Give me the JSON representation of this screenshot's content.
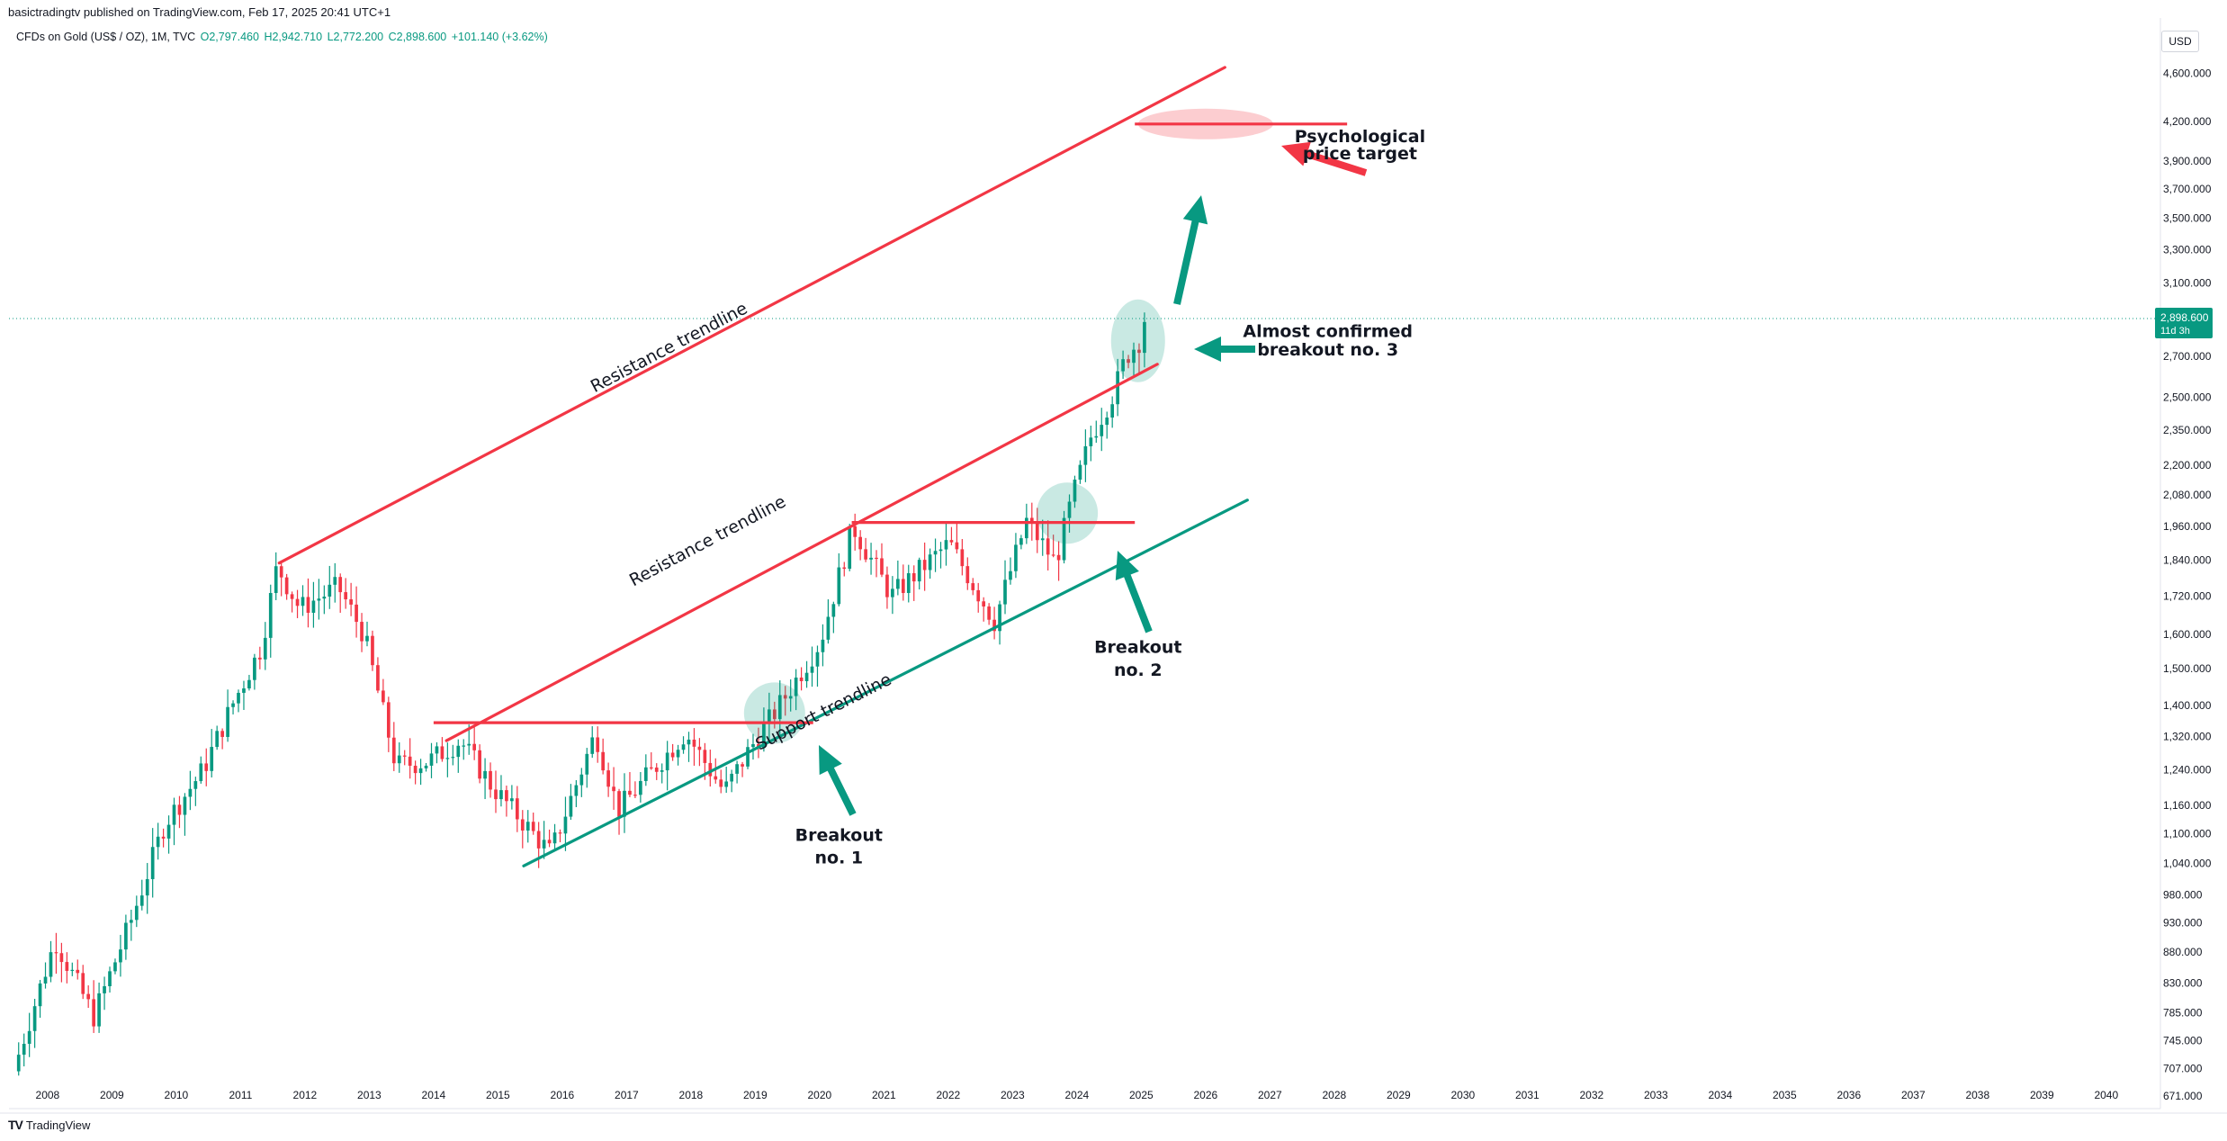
{
  "header": {
    "published_line": "basictradingtv published on TradingView.com, Feb 17, 2025 20:41 UTC+1",
    "symbol": "CFDs on Gold (US$ / OZ), 1M, TVC",
    "open": "O2,797.460",
    "high": "H2,942.710",
    "low": "L2,772.200",
    "close": "C2,898.600",
    "change": "+101.140 (+3.62%)"
  },
  "currency": "USD",
  "last_price_label": {
    "price": "2,898.600",
    "countdown": "11d 3h"
  },
  "footer": {
    "brand": "TradingView"
  },
  "colors": {
    "up": "#089981",
    "down": "#f23645",
    "resistance": "#f23645",
    "support": "#089981",
    "axis_text": "#131722"
  },
  "chart_data": {
    "type": "candlestick",
    "scale": "log",
    "interval": "1M",
    "x_ticks": [
      "2008",
      "2009",
      "2010",
      "2011",
      "2012",
      "2013",
      "2014",
      "2015",
      "2016",
      "2017",
      "2018",
      "2019",
      "2020",
      "2021",
      "2022",
      "2023",
      "2024",
      "2025",
      "2026",
      "2027",
      "2028",
      "2029",
      "2030",
      "2031",
      "2032",
      "2033",
      "2034",
      "2035",
      "2036",
      "2037",
      "2038",
      "2039",
      "2040"
    ],
    "y_ticks": [
      "671.000",
      "707.000",
      "745.000",
      "785.000",
      "830.000",
      "880.000",
      "930.000",
      "980.000",
      "1,040.000",
      "1,100.000",
      "1,160.000",
      "1,240.000",
      "1,320.000",
      "1,400.000",
      "1,500.000",
      "1,600.000",
      "1,720.000",
      "1,840.000",
      "1,960.000",
      "2,080.000",
      "2,200.000",
      "2,350.000",
      "2,500.000",
      "2,700.000",
      "2,900.000",
      "3,100.000",
      "3,300.000",
      "3,500.000",
      "3,700.000",
      "3,900.000",
      "4,200.000",
      "4,600.000"
    ],
    "ylim": [
      660,
      4850
    ],
    "xlim": [
      2007.4,
      2040.8
    ],
    "last_price": 2898.6,
    "trend_anchors": [
      {
        "year": 2007.5,
        "price": 690
      },
      {
        "year": 2008.2,
        "price": 900
      },
      {
        "year": 2008.8,
        "price": 780
      },
      {
        "year": 2009.4,
        "price": 940
      },
      {
        "year": 2009.9,
        "price": 1120
      },
      {
        "year": 2010.5,
        "price": 1240
      },
      {
        "year": 2010.95,
        "price": 1400
      },
      {
        "year": 2011.4,
        "price": 1560
      },
      {
        "year": 2011.65,
        "price": 1820
      },
      {
        "year": 2012.0,
        "price": 1680
      },
      {
        "year": 2012.6,
        "price": 1750
      },
      {
        "year": 2013.0,
        "price": 1600
      },
      {
        "year": 2013.5,
        "price": 1250
      },
      {
        "year": 2014.0,
        "price": 1260
      },
      {
        "year": 2014.5,
        "price": 1310
      },
      {
        "year": 2015.0,
        "price": 1200
      },
      {
        "year": 2015.9,
        "price": 1060
      },
      {
        "year": 2016.6,
        "price": 1330
      },
      {
        "year": 2016.95,
        "price": 1150
      },
      {
        "year": 2018.0,
        "price": 1330
      },
      {
        "year": 2018.6,
        "price": 1190
      },
      {
        "year": 2019.0,
        "price": 1290
      },
      {
        "year": 2019.5,
        "price": 1410
      },
      {
        "year": 2020.1,
        "price": 1580
      },
      {
        "year": 2020.6,
        "price": 1960
      },
      {
        "year": 2021.2,
        "price": 1720
      },
      {
        "year": 2022.1,
        "price": 1900
      },
      {
        "year": 2022.8,
        "price": 1640
      },
      {
        "year": 2023.3,
        "price": 1980
      },
      {
        "year": 2023.75,
        "price": 1830
      },
      {
        "year": 2024.0,
        "price": 2060
      },
      {
        "year": 2024.3,
        "price": 2320
      },
      {
        "year": 2024.65,
        "price": 2520
      },
      {
        "year": 2024.85,
        "price": 2700
      },
      {
        "year": 2025.1,
        "price": 2800
      },
      {
        "year": 2025.13,
        "price": 2898.6
      }
    ],
    "drawings": {
      "resistance_upper": {
        "from": {
          "year": 2011.6,
          "price": 1830
        },
        "to": {
          "year": 2026.3,
          "price": 4650
        }
      },
      "resistance_lower": {
        "from": {
          "year": 2014.2,
          "price": 1310
        },
        "to": {
          "year": 2025.25,
          "price": 2660
        }
      },
      "support": {
        "from": {
          "year": 2015.4,
          "price": 1035
        },
        "to": {
          "year": 2026.65,
          "price": 2060
        }
      },
      "horizontal_1": {
        "from": 2014.0,
        "to": 2019.9,
        "price": 1355
      },
      "horizontal_2": {
        "from": 2020.5,
        "to": 2024.9,
        "price": 1975
      },
      "target_line": {
        "from": 2024.9,
        "to": 2028.2,
        "price": 4180
      },
      "target_ellipse": {
        "year": 2026.0,
        "price": 4180,
        "rx_years": 1.05
      },
      "breakout_circles": [
        {
          "year": 2019.3,
          "price": 1380
        },
        {
          "year": 2023.85,
          "price": 2010
        },
        {
          "year": 2024.95,
          "price": 2780
        }
      ]
    },
    "annotations": [
      {
        "text": "Resistance trendline",
        "year": 2017.7,
        "price": 2720,
        "kind": "upper-label"
      },
      {
        "text": "Resistance trendline",
        "year": 2018.3,
        "price": 1890,
        "kind": "lower-label"
      },
      {
        "text": "Support trendline",
        "year": 2020.1,
        "price": 1370,
        "kind": "support-label"
      },
      {
        "text": "Psychological",
        "year": 2028.4,
        "price": 4040,
        "kind": "target"
      },
      {
        "text": "price target",
        "year": 2028.4,
        "price": 3910,
        "kind": "target"
      },
      {
        "text": "Almost confirmed",
        "year": 2027.9,
        "price": 2800,
        "kind": "b3"
      },
      {
        "text": "breakout no. 3",
        "year": 2027.9,
        "price": 2705,
        "kind": "b3"
      },
      {
        "text": "Breakout",
        "year": 2024.95,
        "price": 1545,
        "kind": "b2"
      },
      {
        "text": "no. 2",
        "year": 2024.95,
        "price": 1480,
        "kind": "b2"
      },
      {
        "text": "Breakout",
        "year": 2020.3,
        "price": 1085,
        "kind": "b1"
      },
      {
        "text": "no. 1",
        "year": 2020.3,
        "price": 1040,
        "kind": "b1"
      }
    ]
  }
}
